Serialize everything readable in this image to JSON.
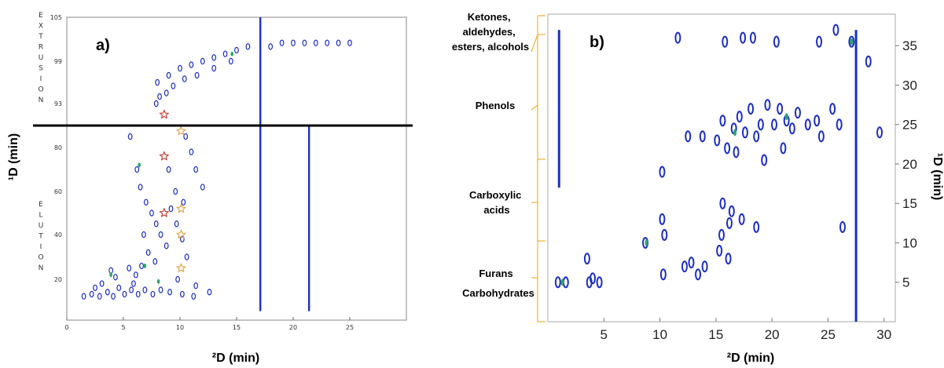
{
  "chart_data": [
    {
      "type": "heatmap",
      "panel_label": "a)",
      "xlabel": "²D (min)",
      "ylabel": "¹D (min)",
      "xlim": [
        0,
        30
      ],
      "ylim": [
        5,
        105
      ],
      "x_ticks": [
        "0",
        "5",
        "10",
        "15",
        "20",
        "25"
      ],
      "y_ticks": [
        "20",
        "40",
        "60",
        "80",
        "93",
        "99",
        "105"
      ],
      "region_labels": [
        "EXTRUSION",
        "ELUTION"
      ],
      "divider_y": 90,
      "colors": {
        "spot": "#1c2fc0",
        "highlight": "#2da66a",
        "divider": "#000000"
      },
      "streaks": [
        {
          "x": 17.1,
          "y1": 5,
          "y2": 105
        },
        {
          "x": 21.4,
          "y1": 5,
          "y2": 90
        }
      ],
      "stars_red": [
        [
          8.6,
          91.5
        ],
        [
          8.6,
          76
        ],
        [
          8.6,
          50
        ]
      ],
      "stars_orange": [
        [
          10.1,
          87.5
        ],
        [
          10.1,
          52
        ],
        [
          10.1,
          40
        ],
        [
          10.1,
          25
        ]
      ],
      "spots": [
        [
          8,
          96
        ],
        [
          9,
          97
        ],
        [
          10,
          98
        ],
        [
          11,
          98.5
        ],
        [
          12,
          99
        ],
        [
          13,
          99.5
        ],
        [
          14,
          100
        ],
        [
          15,
          100.5
        ],
        [
          16,
          101
        ],
        [
          18,
          101
        ],
        [
          19,
          101.5
        ],
        [
          20,
          101.5
        ],
        [
          21,
          101.5
        ],
        [
          22,
          101.5
        ],
        [
          23,
          101.5
        ],
        [
          24,
          101.5
        ],
        [
          25,
          101.5
        ],
        [
          7.9,
          93
        ],
        [
          8.2,
          94
        ],
        [
          8.8,
          94.5
        ],
        [
          9.4,
          95.5
        ],
        [
          10.4,
          96.5
        ],
        [
          11.5,
          97
        ],
        [
          13,
          98
        ],
        [
          14.5,
          99
        ],
        [
          5.6,
          85
        ],
        [
          6.2,
          70
        ],
        [
          6.5,
          62
        ],
        [
          7.0,
          55
        ],
        [
          7.5,
          50
        ],
        [
          7.9,
          45
        ],
        [
          8.3,
          40
        ],
        [
          8.8,
          35
        ],
        [
          9.0,
          70
        ],
        [
          9.6,
          60
        ],
        [
          9.2,
          52
        ],
        [
          9.7,
          45
        ],
        [
          10.2,
          38
        ],
        [
          10.6,
          30
        ],
        [
          10.5,
          85
        ],
        [
          11.0,
          78
        ],
        [
          11.4,
          70
        ],
        [
          12.0,
          62
        ],
        [
          10.3,
          55
        ],
        [
          6.8,
          40
        ],
        [
          7.2,
          32
        ],
        [
          6.6,
          26
        ],
        [
          6.1,
          22
        ],
        [
          5.9,
          18
        ],
        [
          1.5,
          12
        ],
        [
          2.2,
          13
        ],
        [
          2.9,
          12
        ],
        [
          3.6,
          14
        ],
        [
          4.1,
          12
        ],
        [
          4.6,
          16
        ],
        [
          5.1,
          13
        ],
        [
          5.7,
          15
        ],
        [
          6.3,
          13
        ],
        [
          6.9,
          15
        ],
        [
          7.6,
          13
        ],
        [
          8.3,
          15
        ],
        [
          9.1,
          14
        ],
        [
          10.2,
          13
        ],
        [
          11.2,
          12
        ],
        [
          3.1,
          18
        ],
        [
          4.3,
          21
        ],
        [
          5.5,
          25
        ],
        [
          7.8,
          28
        ],
        [
          9.8,
          20
        ],
        [
          11.4,
          17
        ],
        [
          12.6,
          14
        ],
        [
          3.9,
          24
        ],
        [
          2.5,
          16
        ]
      ],
      "highlights": [
        [
          14.6,
          100
        ],
        [
          6.4,
          72
        ],
        [
          3.9,
          22
        ],
        [
          6.9,
          26
        ],
        [
          8.1,
          19
        ]
      ]
    },
    {
      "type": "heatmap",
      "panel_label": "b)",
      "xlabel": "²D (min)",
      "ylabel": "¹D (min)",
      "xlim": [
        0,
        31
      ],
      "ylim": [
        0,
        39
      ],
      "x_ticks": [
        "5",
        "10",
        "15",
        "20",
        "25",
        "30"
      ],
      "y_ticks": [
        "5",
        "10",
        "15",
        "20",
        "25",
        "30",
        "35"
      ],
      "classes": [
        "Ketones, aldehydes, esters, alcohols",
        "Phenols",
        "Carboxylic acids",
        "Furans",
        "Carbohydrates"
      ],
      "colors": {
        "spot": "#1c2fc0",
        "highlight": "#2da66a",
        "bracket": "#f0b030"
      },
      "streaks": [
        {
          "x": 1.0,
          "y1": 17,
          "y2": 37
        },
        {
          "x": 27.5,
          "y1": 0,
          "y2": 37
        }
      ],
      "spots": [
        [
          0.9,
          5
        ],
        [
          1.6,
          5
        ],
        [
          3.5,
          8
        ],
        [
          3.7,
          5
        ],
        [
          4.6,
          5
        ],
        [
          4.0,
          5.5
        ],
        [
          8.7,
          10
        ],
        [
          10.2,
          19
        ],
        [
          10.2,
          13
        ],
        [
          10.4,
          11
        ],
        [
          10.3,
          6
        ],
        [
          11.6,
          36
        ],
        [
          15.8,
          35.5
        ],
        [
          17.4,
          36
        ],
        [
          18.3,
          36
        ],
        [
          20.4,
          35.5
        ],
        [
          24.2,
          35.5
        ],
        [
          25.7,
          37
        ],
        [
          27.1,
          35.5
        ],
        [
          12.5,
          23.5
        ],
        [
          13.8,
          23.5
        ],
        [
          15.6,
          25.5
        ],
        [
          16.6,
          24.5
        ],
        [
          17.1,
          26
        ],
        [
          17.6,
          24
        ],
        [
          18.1,
          27
        ],
        [
          18.6,
          23.5
        ],
        [
          19.0,
          25
        ],
        [
          19.6,
          27.5
        ],
        [
          20.2,
          25
        ],
        [
          20.7,
          27
        ],
        [
          21.3,
          25.5
        ],
        [
          21.8,
          24.5
        ],
        [
          22.3,
          26.5
        ],
        [
          23.2,
          25
        ],
        [
          24.0,
          25.5
        ],
        [
          24.4,
          23.5
        ],
        [
          15.1,
          23
        ],
        [
          16.0,
          22
        ],
        [
          16.8,
          21.5
        ],
        [
          19.3,
          20.5
        ],
        [
          21.0,
          22
        ],
        [
          25.4,
          27
        ],
        [
          26.0,
          25
        ],
        [
          15.6,
          15
        ],
        [
          16.4,
          14
        ],
        [
          15.5,
          11
        ],
        [
          16.2,
          12.5
        ],
        [
          17.3,
          13
        ],
        [
          18.6,
          12
        ],
        [
          12.2,
          7
        ],
        [
          12.8,
          7.5
        ],
        [
          13.4,
          6
        ],
        [
          14.0,
          7
        ],
        [
          15.3,
          9
        ],
        [
          16.1,
          8
        ],
        [
          29.6,
          24
        ],
        [
          28.6,
          33
        ],
        [
          26.3,
          12
        ]
      ],
      "highlights": [
        [
          8.8,
          10
        ],
        [
          27.1,
          35.5
        ],
        [
          1.3,
          5
        ],
        [
          16.7,
          24
        ],
        [
          21.3,
          26
        ]
      ]
    }
  ]
}
